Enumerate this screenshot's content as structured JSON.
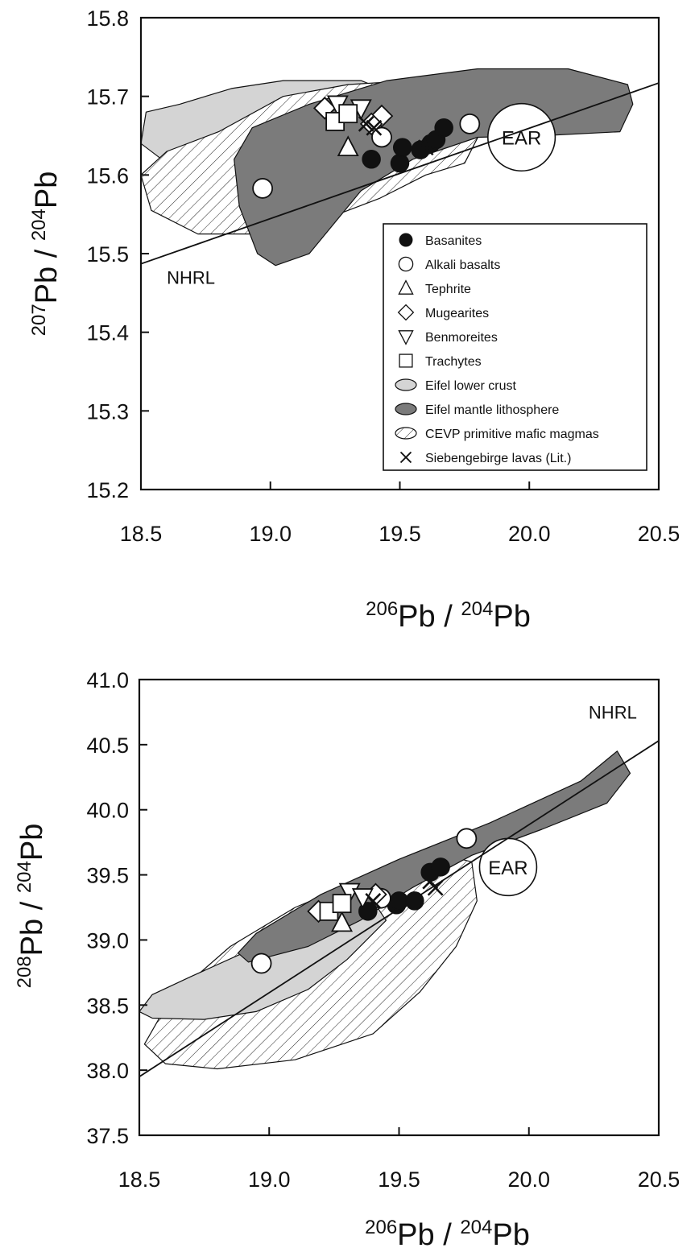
{
  "chart_data": [
    {
      "type": "scatter",
      "title": "",
      "xlabel_parts": [
        "206",
        "Pb / ",
        "204",
        "Pb"
      ],
      "ylabel_parts": [
        "207",
        "Pb / ",
        "204",
        "Pb"
      ],
      "xlim": [
        18.5,
        20.5
      ],
      "ylim": [
        15.2,
        15.8
      ],
      "x_ticks": [
        "18.5",
        "19.0",
        "19.5",
        "20.0",
        "20.5"
      ],
      "y_ticks": [
        "15.2",
        "15.3",
        "15.4",
        "15.5",
        "15.6",
        "15.7",
        "15.8"
      ],
      "legend_position": "lower-right",
      "fields": {
        "eifel_lower_crust": {
          "color": "#d4d4d4",
          "points": [
            [
              18.5,
              15.64
            ],
            [
              18.52,
              15.68
            ],
            [
              18.65,
              15.69
            ],
            [
              18.85,
              15.71
            ],
            [
              19.05,
              15.72
            ],
            [
              19.35,
              15.72
            ],
            [
              19.5,
              15.7
            ],
            [
              19.6,
              15.68
            ],
            [
              19.45,
              15.65
            ],
            [
              19.25,
              15.63
            ],
            [
              19.0,
              15.615
            ],
            [
              18.8,
              15.61
            ],
            [
              18.6,
              15.615
            ],
            [
              18.5,
              15.64
            ]
          ]
        },
        "eifel_mantle_lithosphere": {
          "color": "#7b7b7b",
          "points": [
            [
              18.86,
              15.62
            ],
            [
              18.93,
              15.66
            ],
            [
              19.15,
              15.69
            ],
            [
              19.45,
              15.72
            ],
            [
              19.8,
              15.735
            ],
            [
              20.15,
              15.735
            ],
            [
              20.38,
              15.715
            ],
            [
              20.4,
              15.69
            ],
            [
              20.35,
              15.655
            ],
            [
              20.05,
              15.65
            ],
            [
              19.8,
              15.648
            ],
            [
              19.55,
              15.62
            ],
            [
              19.35,
              15.58
            ],
            [
              19.15,
              15.5
            ],
            [
              19.02,
              15.485
            ],
            [
              18.95,
              15.5
            ],
            [
              18.88,
              15.56
            ],
            [
              18.86,
              15.62
            ]
          ]
        },
        "cevp_primitive": {
          "points": [
            [
              18.5,
              15.6
            ],
            [
              18.54,
              15.555
            ],
            [
              18.72,
              15.525
            ],
            [
              18.98,
              15.525
            ],
            [
              19.22,
              15.545
            ],
            [
              19.42,
              15.57
            ],
            [
              19.6,
              15.6
            ],
            [
              19.75,
              15.615
            ],
            [
              19.82,
              15.66
            ],
            [
              19.75,
              15.71
            ],
            [
              19.55,
              15.72
            ],
            [
              19.3,
              15.715
            ],
            [
              19.05,
              15.7
            ],
            [
              18.8,
              15.655
            ],
            [
              18.6,
              15.63
            ],
            [
              18.5,
              15.6
            ]
          ]
        }
      },
      "ear_circle": {
        "label": "EAR",
        "center": [
          19.97,
          15.648
        ],
        "radius_x": 0.13
      },
      "nhrl": {
        "label": "NHRL",
        "from": [
          18.5,
          15.487
        ],
        "to": [
          20.5,
          15.717
        ],
        "label_at": [
          18.6,
          15.47
        ]
      },
      "series": [
        {
          "name": "Basanites",
          "marker": "filled-circle",
          "points": [
            [
              19.39,
              15.62
            ],
            [
              19.5,
              15.615
            ],
            [
              19.51,
              15.635
            ],
            [
              19.58,
              15.632
            ],
            [
              19.62,
              15.64
            ],
            [
              19.64,
              15.645
            ],
            [
              19.67,
              15.66
            ]
          ]
        },
        {
          "name": "Alkali basalts",
          "marker": "open-circle",
          "points": [
            [
              18.97,
              15.583
            ],
            [
              19.43,
              15.648
            ],
            [
              19.77,
              15.665
            ]
          ]
        },
        {
          "name": "Tephrite",
          "marker": "triangle-up",
          "points": [
            [
              19.3,
              15.635
            ]
          ]
        },
        {
          "name": "Mugearites",
          "marker": "diamond",
          "points": [
            [
              19.21,
              15.685
            ],
            [
              19.43,
              15.675
            ],
            [
              19.39,
              15.665
            ]
          ]
        },
        {
          "name": "Benmoreites",
          "marker": "triangle-down",
          "points": [
            [
              19.26,
              15.69
            ],
            [
              19.35,
              15.685
            ]
          ]
        },
        {
          "name": "Trachytes",
          "marker": "square",
          "points": [
            [
              19.25,
              15.668
            ],
            [
              19.3,
              15.678
            ]
          ]
        },
        {
          "name": "Eifel lower crust",
          "marker": "field-light"
        },
        {
          "name": "Eifel mantle lithosphere",
          "marker": "field-dark"
        },
        {
          "name": "CEVP primitive mafic magmas",
          "marker": "field-hatched"
        },
        {
          "name": "Siebengebirge lavas (Lit.)",
          "marker": "cross",
          "points": [
            [
              19.37,
              15.665
            ],
            [
              19.4,
              15.66
            ],
            [
              19.6,
              15.635
            ]
          ]
        }
      ]
    },
    {
      "type": "scatter",
      "title": "",
      "xlabel_parts": [
        "206",
        "Pb / ",
        "204",
        "Pb"
      ],
      "ylabel_parts": [
        "208",
        "Pb / ",
        "204",
        "Pb"
      ],
      "xlim": [
        18.5,
        20.5
      ],
      "ylim": [
        37.5,
        41.0
      ],
      "x_ticks": [
        "18.5",
        "19.0",
        "19.5",
        "20.0",
        "20.5"
      ],
      "y_ticks": [
        "37.5",
        "38.0",
        "38.5",
        "39.0",
        "39.5",
        "40.0",
        "40.5",
        "41.0"
      ],
      "fields": {
        "cevp_primitive": {
          "points": [
            [
              18.52,
              38.2
            ],
            [
              18.6,
              38.05
            ],
            [
              18.8,
              38.01
            ],
            [
              19.1,
              38.08
            ],
            [
              19.4,
              38.28
            ],
            [
              19.58,
              38.6
            ],
            [
              19.72,
              38.95
            ],
            [
              19.8,
              39.3
            ],
            [
              19.78,
              39.6
            ],
            [
              19.62,
              39.68
            ],
            [
              19.4,
              39.5
            ],
            [
              19.1,
              39.25
            ],
            [
              18.85,
              38.95
            ],
            [
              18.62,
              38.55
            ],
            [
              18.52,
              38.2
            ]
          ]
        },
        "eifel_lower_crust": {
          "color": "#d4d4d4",
          "points": [
            [
              18.5,
              38.45
            ],
            [
              18.55,
              38.58
            ],
            [
              18.7,
              38.72
            ],
            [
              18.9,
              38.9
            ],
            [
              19.1,
              39.07
            ],
            [
              19.3,
              39.25
            ],
            [
              19.4,
              39.3
            ],
            [
              19.45,
              39.15
            ],
            [
              19.3,
              38.85
            ],
            [
              19.15,
              38.62
            ],
            [
              18.95,
              38.45
            ],
            [
              18.75,
              38.39
            ],
            [
              18.55,
              38.4
            ],
            [
              18.5,
              38.45
            ]
          ]
        },
        "eifel_mantle_lithosphere": {
          "color": "#7b7b7b",
          "points": [
            [
              18.88,
              38.9
            ],
            [
              18.95,
              39.05
            ],
            [
              19.2,
              39.35
            ],
            [
              19.5,
              39.62
            ],
            [
              19.85,
              39.9
            ],
            [
              20.2,
              40.22
            ],
            [
              20.34,
              40.45
            ],
            [
              20.39,
              40.28
            ],
            [
              20.3,
              40.05
            ],
            [
              20.05,
              39.85
            ],
            [
              19.78,
              39.65
            ],
            [
              19.55,
              39.4
            ],
            [
              19.35,
              39.15
            ],
            [
              19.15,
              38.95
            ],
            [
              18.92,
              38.83
            ],
            [
              18.88,
              38.9
            ]
          ]
        }
      },
      "ear_circle": {
        "label": "EAR",
        "center": [
          19.92,
          39.56
        ],
        "radius_x": 0.11
      },
      "nhrl": {
        "label": "NHRL",
        "from": [
          18.5,
          37.95
        ],
        "to": [
          20.5,
          40.53
        ],
        "label_at": [
          20.23,
          40.75
        ]
      },
      "series": [
        {
          "name": "Basanites",
          "marker": "filled-circle",
          "points": [
            [
              19.38,
              39.22
            ],
            [
              19.49,
              39.27
            ],
            [
              19.5,
              39.3
            ],
            [
              19.56,
              39.3
            ],
            [
              19.62,
              39.52
            ],
            [
              19.66,
              39.56
            ]
          ]
        },
        {
          "name": "Alkali basalts",
          "marker": "open-circle",
          "points": [
            [
              18.97,
              38.82
            ],
            [
              19.43,
              39.32
            ],
            [
              19.76,
              39.78
            ]
          ]
        },
        {
          "name": "Tephrite",
          "marker": "triangle-up",
          "points": [
            [
              19.28,
              39.13
            ]
          ]
        },
        {
          "name": "Mugearites",
          "marker": "diamond",
          "points": [
            [
              19.19,
              39.22
            ],
            [
              19.41,
              39.35
            ]
          ]
        },
        {
          "name": "Benmoreites",
          "marker": "triangle-down",
          "points": [
            [
              19.31,
              39.37
            ],
            [
              19.36,
              39.33
            ]
          ]
        },
        {
          "name": "Trachytes",
          "marker": "square",
          "points": [
            [
              19.23,
              39.22
            ],
            [
              19.28,
              39.28
            ]
          ]
        },
        {
          "name": "Siebengebirge lavas (Lit.)",
          "marker": "cross",
          "points": [
            [
              19.4,
              39.3
            ],
            [
              19.62,
              39.45
            ],
            [
              19.64,
              39.4
            ]
          ]
        }
      ]
    }
  ]
}
